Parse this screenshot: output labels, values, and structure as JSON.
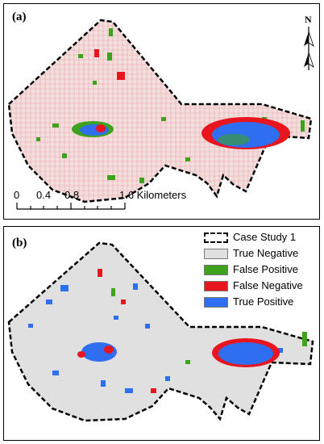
{
  "panel_a": {
    "label": "(a)",
    "north_label": "N",
    "scale": {
      "ticks": [
        "0",
        "0.4",
        "0.8",
        "1.6 Kilometers"
      ]
    }
  },
  "panel_b": {
    "label": "(b)",
    "legend": [
      {
        "label": "Case Study 1",
        "color": "#ffffff",
        "style": "dashed-border"
      },
      {
        "label": "True Negative",
        "color": "#e0e0e0"
      },
      {
        "label": "False Positive",
        "color": "#3ea21f"
      },
      {
        "label": "False Negative",
        "color": "#e8141e"
      },
      {
        "label": "True Positive",
        "color": "#2f6ef0"
      }
    ]
  },
  "colors": {
    "true_negative": "#e0e0e0",
    "false_positive": "#3ea21f",
    "false_negative": "#e8141e",
    "true_positive": "#2f6ef0",
    "noise_a": "#f0c8c8"
  }
}
